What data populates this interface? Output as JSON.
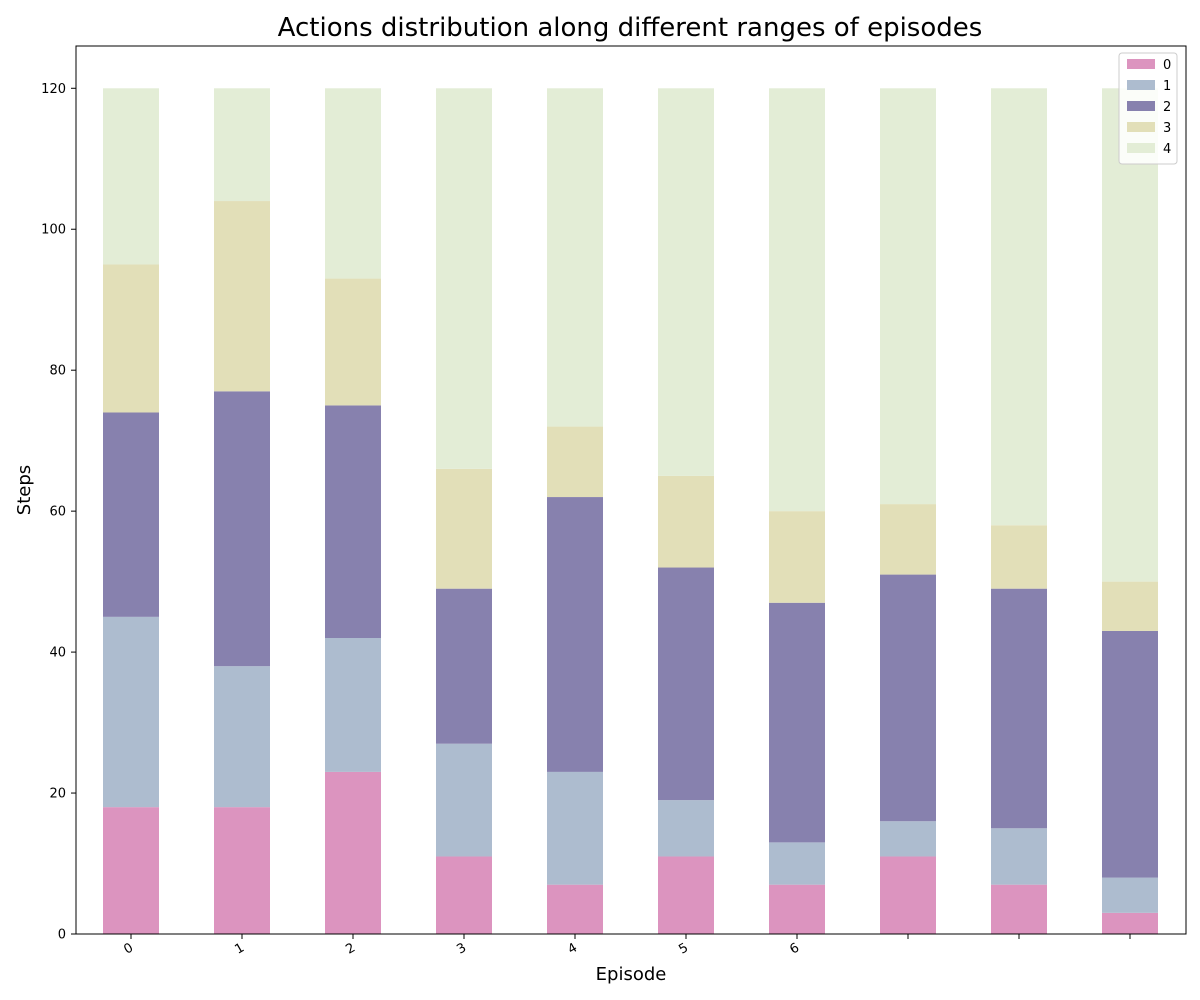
{
  "chart_data": {
    "type": "bar",
    "stacked": true,
    "title": "Actions distribution along different ranges of episodes",
    "xlabel": "Episode",
    "ylabel": "Steps",
    "categories": [
      "0",
      "1",
      "2",
      "3",
      "4",
      "5",
      "6",
      "",
      "",
      ""
    ],
    "ylim": [
      0,
      126
    ],
    "yticks": [
      0,
      20,
      40,
      60,
      80,
      100,
      120
    ],
    "grid": false,
    "legend_position": "top-right",
    "series": [
      {
        "name": "0",
        "color": "#DC94BF",
        "values": [
          18,
          18,
          23,
          11,
          7,
          11,
          7,
          11,
          7,
          3
        ]
      },
      {
        "name": "1",
        "color": "#ADBCCF",
        "values": [
          27,
          20,
          19,
          16,
          16,
          8,
          6,
          5,
          8,
          5
        ]
      },
      {
        "name": "2",
        "color": "#8781AE",
        "values": [
          29,
          39,
          33,
          22,
          39,
          33,
          34,
          35,
          34,
          35
        ]
      },
      {
        "name": "3",
        "color": "#E2DFB8",
        "values": [
          21,
          27,
          18,
          17,
          10,
          13,
          13,
          10,
          9,
          7
        ]
      },
      {
        "name": "4",
        "color": "#E3EDD6",
        "values": [
          25,
          16,
          27,
          54,
          48,
          55,
          60,
          59,
          62,
          70
        ]
      }
    ]
  }
}
